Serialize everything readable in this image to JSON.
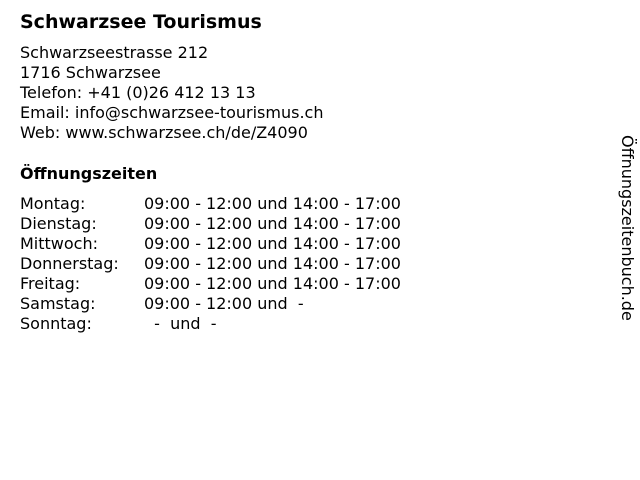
{
  "business": {
    "name": "Schwarzsee Tourismus",
    "address_lines": [
      "Schwarzseestrasse 212",
      "1716 Schwarzsee",
      "Telefon: +41 (0)26 412 13 13",
      "Email: info@schwarzsee-tourismus.ch",
      "Web: www.schwarzsee.ch/de/Z4090"
    ]
  },
  "hours": {
    "heading": "Öffnungszeiten",
    "rows": [
      {
        "day": "Montag:",
        "time": "09:00 - 12:00 und 14:00 - 17:00"
      },
      {
        "day": "Dienstag:",
        "time": "09:00 - 12:00 und 14:00 - 17:00"
      },
      {
        "day": "Mittwoch:",
        "time": "09:00 - 12:00 und 14:00 - 17:00"
      },
      {
        "day": "Donnerstag:",
        "time": "09:00 - 12:00 und 14:00 - 17:00"
      },
      {
        "day": "Freitag:",
        "time": "09:00 - 12:00 und 14:00 - 17:00"
      },
      {
        "day": "Samstag:",
        "time": "09:00 - 12:00 und  -"
      },
      {
        "day": "Sonntag:",
        "time": "  -  und  -"
      }
    ]
  },
  "watermark": "Öffnungszeitenbuch.de"
}
